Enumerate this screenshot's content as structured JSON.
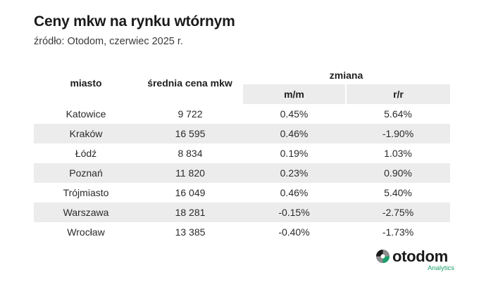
{
  "header": {
    "title": "Ceny mkw na rynku wtórnym",
    "subtitle": "źródło: Otodom, czerwiec 2025 r."
  },
  "table": {
    "headers": {
      "city": "miasto",
      "price": "średnia cena mkw",
      "change": "zmiana",
      "mm": "m/m",
      "rr": "r/r"
    },
    "rows": [
      {
        "city": "Katowice",
        "price": "9 722",
        "mm": "0.45%",
        "rr": "5.64%"
      },
      {
        "city": "Kraków",
        "price": "16 595",
        "mm": "0.46%",
        "rr": "-1.90%"
      },
      {
        "city": "Łódź",
        "price": "8 834",
        "mm": "0.19%",
        "rr": "1.03%"
      },
      {
        "city": "Poznań",
        "price": "11 820",
        "mm": "0.23%",
        "rr": "0.90%"
      },
      {
        "city": "Trójmiasto",
        "price": "16 049",
        "mm": "0.46%",
        "rr": "5.40%"
      },
      {
        "city": "Warszawa",
        "price": "18 281",
        "mm": "-0.15%",
        "rr": "-2.75%"
      },
      {
        "city": "Wrocław",
        "price": "13 385",
        "mm": "-0.40%",
        "rr": "-1.73%"
      }
    ]
  },
  "logo": {
    "name": "otodom",
    "tagline": "Analytics",
    "icon": "otodom-logo-icon",
    "colors": {
      "dark": "#1a1a1a",
      "mid": "#8c8c8c",
      "accent": "#1a9f6a"
    }
  },
  "colors": {
    "row_shade": "#ececec",
    "text": "#1f1f1f"
  }
}
